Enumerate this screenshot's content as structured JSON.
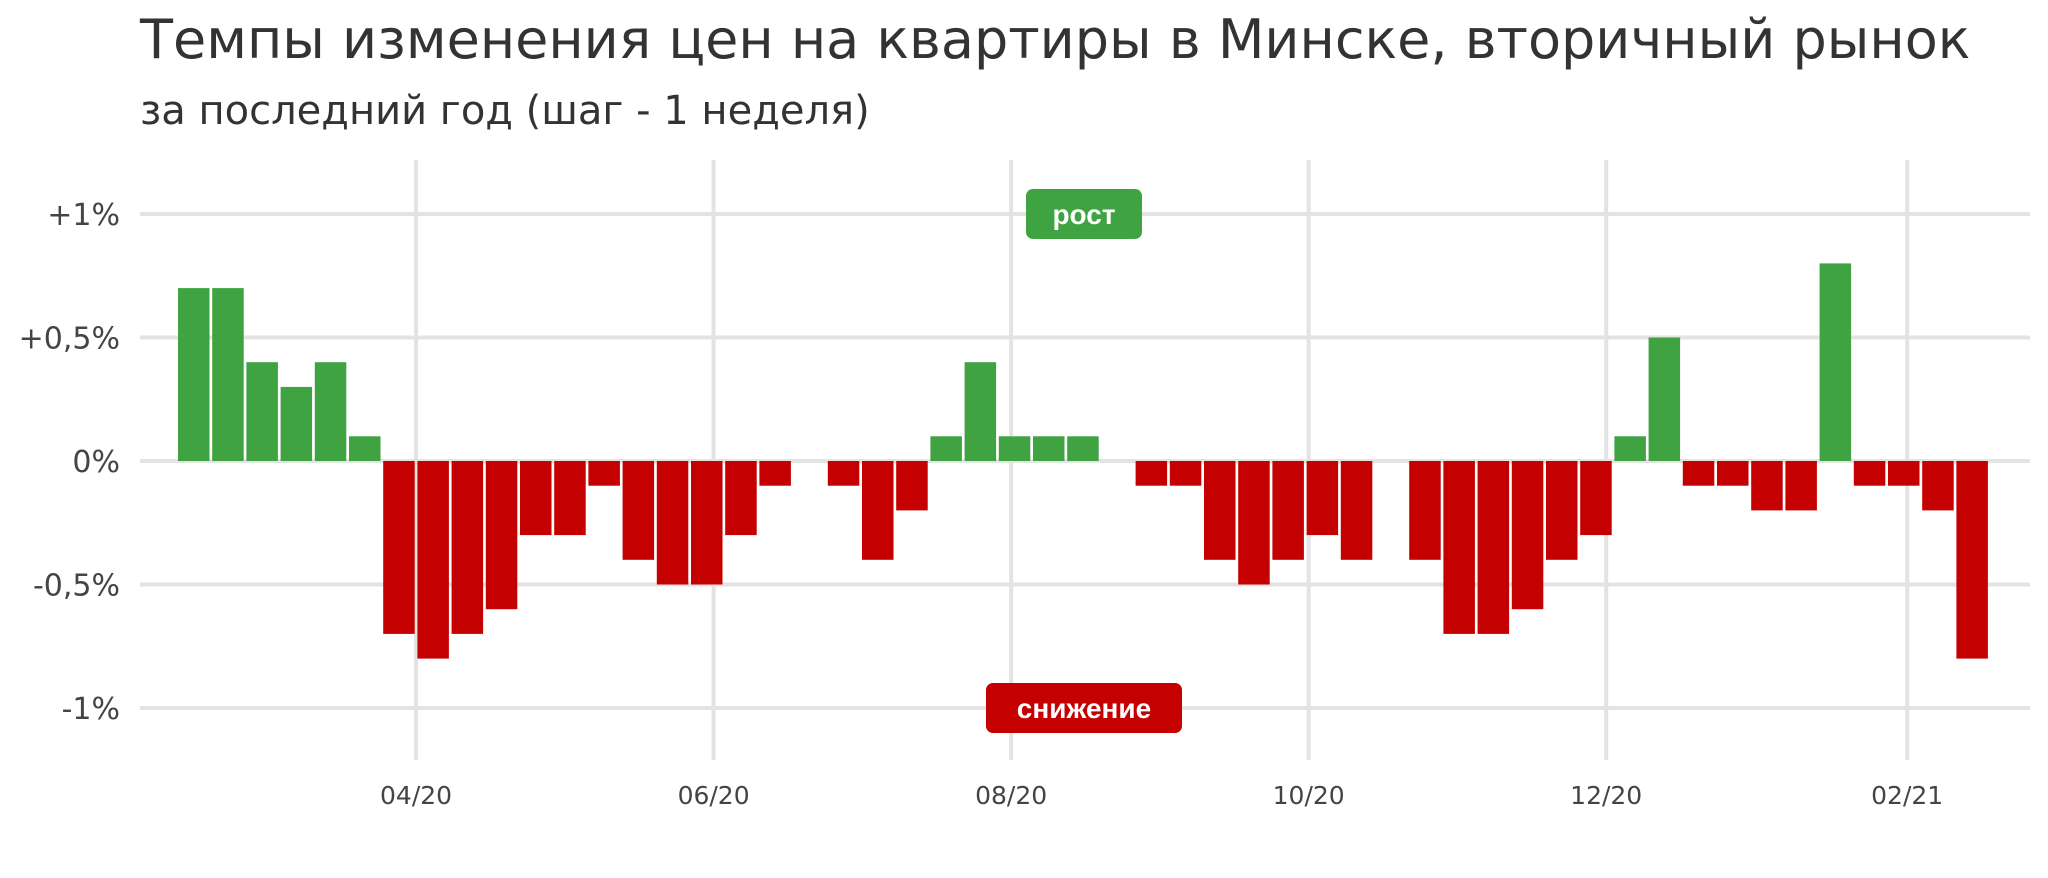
{
  "title": "Темпы изменения цен на квартиры в Минске, вторичный рынок",
  "subtitle": "за последний год (шаг - 1 неделя)",
  "colors": {
    "up": "#3fa342",
    "down": "#c50000",
    "grid": "#e3e3e3",
    "text": "#333333"
  },
  "chart_data": {
    "type": "bar",
    "title": "Темпы изменения цен на квартиры в Минске, вторичный рынок",
    "subtitle": "за последний год (шаг - 1 неделя)",
    "xlabel": "",
    "ylabel": "",
    "ylim": [
      -1.1,
      1.2
    ],
    "grid": true,
    "x_ticks": [
      {
        "label": "04/20",
        "index": 6.5
      },
      {
        "label": "06/20",
        "index": 15.2
      },
      {
        "label": "08/20",
        "index": 23.9
      },
      {
        "label": "10/20",
        "index": 32.6
      },
      {
        "label": "12/20",
        "index": 41.3
      },
      {
        "label": "02/21",
        "index": 50.1
      }
    ],
    "y_ticks": [
      {
        "value": 1,
        "label": "+1%"
      },
      {
        "value": 0.5,
        "label": "+0,5%"
      },
      {
        "value": 0,
        "label": "0%"
      },
      {
        "value": -0.5,
        "label": "-0,5%"
      },
      {
        "value": -1,
        "label": "-1%"
      }
    ],
    "values": [
      0.7,
      0.7,
      0.4,
      0.3,
      0.4,
      0.1,
      -0.7,
      -0.8,
      -0.7,
      -0.6,
      -0.3,
      -0.3,
      -0.1,
      -0.4,
      -0.5,
      -0.5,
      -0.3,
      -0.1,
      0,
      -0.1,
      -0.4,
      -0.2,
      0.1,
      0.4,
      0.1,
      0.1,
      0.1,
      0,
      -0.1,
      -0.1,
      -0.4,
      -0.5,
      -0.4,
      -0.3,
      -0.4,
      0,
      -0.4,
      -0.7,
      -0.7,
      -0.6,
      -0.4,
      -0.3,
      0.1,
      0.5,
      -0.1,
      -0.1,
      -0.2,
      -0.2,
      0.8,
      -0.1,
      -0.1,
      -0.2,
      -0.8
    ],
    "annotations": [
      {
        "text": "рост",
        "value": 1,
        "kind": "up"
      },
      {
        "text": "снижение",
        "value": -1,
        "kind": "down"
      }
    ]
  }
}
